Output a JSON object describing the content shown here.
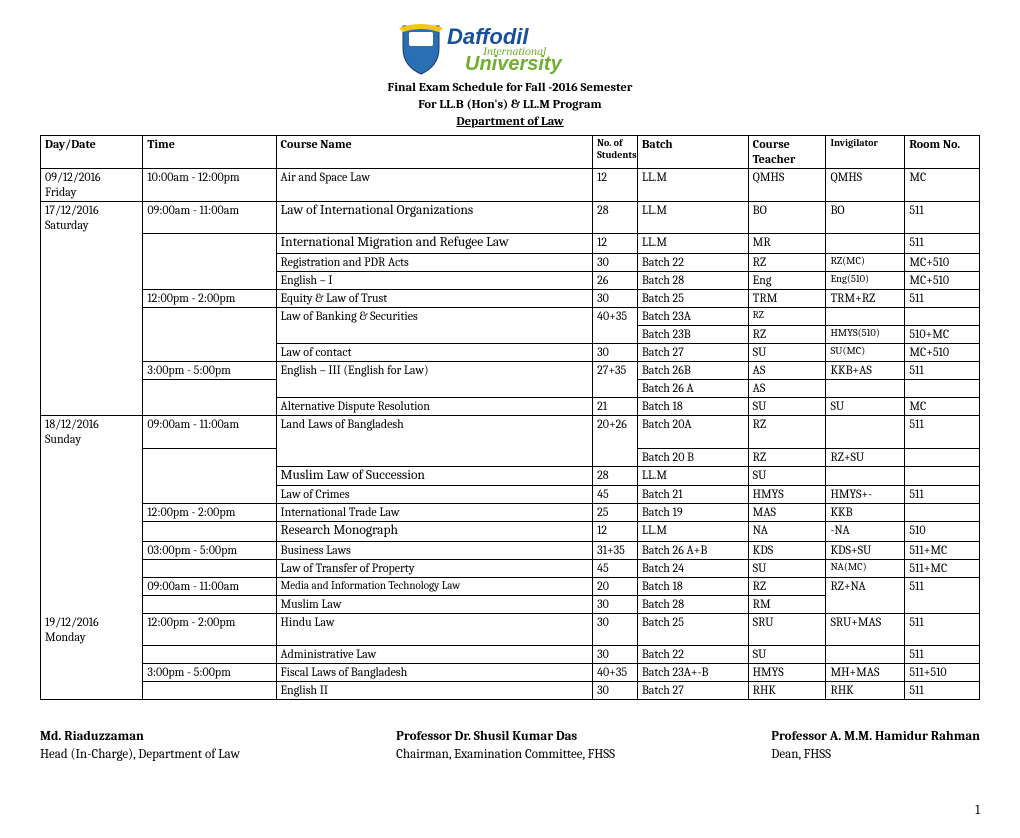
{
  "logo": {
    "brand_text_top": "Daffodil",
    "brand_text_mid": "International",
    "brand_text_bot": "University",
    "shield_blue": "#2b6fb3",
    "blue": "#1a4f9c",
    "green": "#6fae2f",
    "yellow": "#f5c518"
  },
  "title": {
    "line1": "Final Exam Schedule for Fall -2016 Semester",
    "line2": "For LL.B (Hon's) & LL.M Program",
    "line3": "Department of Law"
  },
  "columns": {
    "day_date": "Day/Date",
    "time": "Time",
    "course_name": "Course Name",
    "no_students": "No. of Students",
    "batch": "Batch",
    "course_teacher": "Course Teacher",
    "invigilator": "Invigilator",
    "room_no": "Room No."
  },
  "col_widths": {
    "day_date": "96px",
    "time": "125px",
    "course_name": "297px",
    "no_students": "42px",
    "batch": "104px",
    "course_teacher": "73px",
    "invigilator": "74px",
    "room_no": "70px"
  },
  "rows": [
    {
      "day": "09/12/2016",
      "day2": "Friday",
      "time": "10:00am - 12:00pm",
      "course": " Air and Space Law",
      "n": "12",
      "batch": "LL.M",
      "teacher": "QMHS",
      "inv": "QMHS",
      "room": "MC"
    },
    {
      "day": "17/12/2016",
      "day2": "Saturday",
      "time": "09:00am - 11:00am",
      "course": "Law of International Organizations",
      "n": "28",
      "batch": "LL.M",
      "teacher": "BO",
      "inv": "BO",
      "room": "511"
    },
    {
      "course": "International Migration and Refugee Law",
      "n": "12",
      "batch": "LL.M",
      "teacher": "MR",
      "inv": "",
      "room": "511"
    },
    {
      "course": "Registration and PDR Acts",
      "n": "30",
      "batch": "Batch 22",
      "teacher": "RZ",
      "inv": "RZ(MC)",
      "room": "MC+510"
    },
    {
      "course": "English – I",
      "n": "26",
      "batch": "Batch 28",
      "teacher": "Eng",
      "inv": "Eng(510)",
      "room": "MC+510"
    },
    {
      "time": "12:00pm - 2:00pm",
      "course": "Equity & Law of Trust",
      "n": "30",
      "batch": "Batch 25",
      "teacher": "TRM",
      "inv": "TRM+RZ",
      "room": "511"
    },
    {
      "course": "Law of Banking & Securities",
      "n": "40+35",
      "batch": "Batch 23A",
      "teacher": "RZ",
      "inv": "",
      "room": ""
    },
    {
      "batch": "Batch 23B",
      "teacher": "RZ",
      "inv": "HMYS(510)",
      "room": "510+MC"
    },
    {
      "course": "Law of contact",
      "n": "30",
      "batch": "Batch 27",
      "teacher": "SU",
      "inv": "SU(MC)",
      "room": "MC+510"
    },
    {
      "time": "3:00pm - 5:00pm",
      "course": "English – III (English for Law)",
      "n": "27+35",
      "batch": "Batch 26B",
      "teacher": "AS",
      "inv": "KKB+AS",
      "room": "511"
    },
    {
      "batch": "Batch 26 A",
      "teacher": "AS",
      "inv": "",
      "room": ""
    },
    {
      "course": "Alternative Dispute Resolution",
      "n": "21",
      "batch": "Batch 18",
      "teacher": "SU",
      "inv": "SU",
      "room": "MC"
    },
    {
      "day": "18/12/2016",
      "day2": "Sunday",
      "time": "09:00am - 11:00am",
      "course": "Land Laws of Bangladesh",
      "n": "20+26",
      "batch": "Batch 20A",
      "teacher": "RZ",
      "inv": "",
      "room": "511"
    },
    {
      "batch": "Batch 20 B",
      "teacher": "RZ",
      "inv": "RZ+SU",
      "room": ""
    },
    {
      "course": "Muslim Law of Succession",
      "n": "28",
      "batch": "LL.M",
      "teacher": "SU",
      "inv": "",
      "room": ""
    },
    {
      "course": "Law of Crimes",
      "n": "45",
      "batch": "Batch 21",
      "teacher": "HMYS",
      "inv": "HMYS+-",
      "room": "511"
    },
    {
      "time": "12:00pm - 2:00pm",
      "course": "International Trade Law",
      "n": "25",
      "batch": "Batch 19",
      "teacher": "MAS",
      "inv": "KKB",
      "room": ""
    },
    {
      "course": "Research Monograph",
      "n": "12",
      "batch": "LL.M",
      "teacher": "NA",
      "inv": "-NA",
      "room": "510"
    },
    {
      "time": "03:00pm - 5:00pm",
      "course": "Business Laws",
      "n": "31+35",
      "batch": "Batch 26 A+B",
      "teacher": "KDS",
      "inv": "KDS+SU",
      "room": "511+MC"
    },
    {
      "course": "Law of Transfer of Property",
      "n": "45",
      "batch": "Batch 24",
      "teacher": "SU",
      "inv": "NA(MC)",
      "room": "511+MC"
    },
    {
      "time": "09:00am - 11:00am",
      "course": "Media and Information Technology Law",
      "n": "20",
      "batch": "Batch 18",
      "teacher": "RZ",
      "inv": "RZ+NA",
      "room": "511"
    },
    {
      "course": "Muslim Law",
      "n": "30",
      "batch": "Batch 28",
      "teacher": "RM",
      "inv": "",
      "room": ""
    },
    {
      "day": "19/12/2016",
      "day2": "Monday",
      "time": "12:00pm - 2:00pm",
      "course": "Hindu Law",
      "n": "30",
      "batch": "Batch 25",
      "teacher": "SRU",
      "inv": "SRU+MAS",
      "room": "511"
    },
    {
      "course": "Administrative Law",
      "n": "30",
      "batch": "Batch 22",
      "teacher": "SU",
      "inv": "",
      "room": "511"
    },
    {
      "time": "3:00pm - 5:00pm",
      "course": "Fiscal Laws of Bangladesh",
      "n": "40+35",
      "batch": "Batch 23A+-B",
      "teacher": "HMYS",
      "inv": "MH+MAS",
      "room": "511+510"
    },
    {
      "course": "English II",
      "n": "30",
      "batch": "Batch 27",
      "teacher": "RHK",
      "inv": "RHK",
      "room": "511"
    }
  ],
  "signatures": {
    "s1_name": "Md. Riaduzzaman",
    "s1_title": "Head (In-Charge), Department of Law",
    "s2_name": "Professor Dr. Shusil Kumar Das",
    "s2_title": " Chairman, Examination Committee, FHSS",
    "s3_name": "Professor A. M.M. Hamidur Rahman",
    "s3_title": "Dean, FHSS"
  },
  "page_number": "1"
}
